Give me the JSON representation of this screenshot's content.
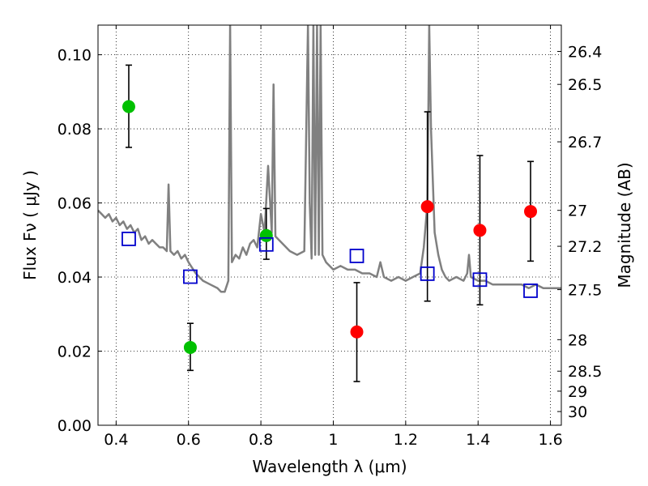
{
  "chart_data": {
    "type": "scatter",
    "xlabel": "Wavelength  λ (μm)",
    "ylabel": "Flux  Fν  ( μJy )",
    "y2label": "Magnitude (AB)",
    "xlim": [
      0.35,
      1.63
    ],
    "ylim": [
      0.0,
      0.108
    ],
    "grid": true,
    "x_ticks": [
      0.4,
      0.6,
      0.8,
      1.0,
      1.2,
      1.4,
      1.6
    ],
    "x_tick_labels": [
      "0.4",
      "0.6",
      "0.8",
      "1",
      "1.2",
      "1.4",
      "1.6"
    ],
    "y_ticks": [
      0.0,
      0.02,
      0.04,
      0.06,
      0.08,
      0.1
    ],
    "y_tick_labels": [
      "0.00",
      "0.02",
      "0.04",
      "0.06",
      "0.08",
      "0.10"
    ],
    "y2_ticks": [
      {
        "label": "26.4",
        "flux": 0.1009
      },
      {
        "label": "26.5",
        "flux": 0.092
      },
      {
        "label": "26.7",
        "flux": 0.0765
      },
      {
        "label": "27",
        "flux": 0.058
      },
      {
        "label": "27.2",
        "flux": 0.0483
      },
      {
        "label": "27.5",
        "flux": 0.0366
      },
      {
        "label": "28",
        "flux": 0.0231
      },
      {
        "label": "28.5",
        "flux": 0.0146
      },
      {
        "label": "29",
        "flux": 0.0092
      },
      {
        "label": "30",
        "flux": 0.0037
      }
    ],
    "series": [
      {
        "kind": "line",
        "color": "#808080",
        "x": [
          0.35,
          0.36,
          0.37,
          0.38,
          0.39,
          0.4,
          0.41,
          0.42,
          0.43,
          0.44,
          0.45,
          0.46,
          0.47,
          0.48,
          0.49,
          0.5,
          0.51,
          0.52,
          0.53,
          0.54,
          0.545,
          0.55,
          0.56,
          0.57,
          0.58,
          0.59,
          0.6,
          0.62,
          0.64,
          0.66,
          0.68,
          0.69,
          0.7,
          0.71,
          0.715,
          0.72,
          0.73,
          0.74,
          0.75,
          0.76,
          0.77,
          0.78,
          0.79,
          0.8,
          0.81,
          0.82,
          0.83,
          0.835,
          0.84,
          0.86,
          0.88,
          0.9,
          0.92,
          0.93,
          0.935,
          0.94,
          0.945,
          0.95,
          0.955,
          0.96,
          0.965,
          0.97,
          0.98,
          1.0,
          1.02,
          1.04,
          1.06,
          1.08,
          1.1,
          1.12,
          1.13,
          1.14,
          1.16,
          1.18,
          1.2,
          1.22,
          1.24,
          1.25,
          1.26,
          1.265,
          1.27,
          1.28,
          1.29,
          1.3,
          1.31,
          1.32,
          1.34,
          1.36,
          1.37,
          1.375,
          1.38,
          1.4,
          1.42,
          1.44,
          1.46,
          1.48,
          1.5,
          1.52,
          1.54,
          1.56,
          1.58,
          1.6,
          1.63
        ],
        "y": [
          0.058,
          0.057,
          0.056,
          0.057,
          0.055,
          0.056,
          0.054,
          0.055,
          0.053,
          0.054,
          0.052,
          0.053,
          0.05,
          0.051,
          0.049,
          0.05,
          0.049,
          0.048,
          0.048,
          0.047,
          0.065,
          0.047,
          0.046,
          0.047,
          0.045,
          0.046,
          0.044,
          0.041,
          0.039,
          0.038,
          0.037,
          0.036,
          0.036,
          0.039,
          0.108,
          0.044,
          0.046,
          0.045,
          0.048,
          0.046,
          0.049,
          0.05,
          0.048,
          0.057,
          0.052,
          0.07,
          0.052,
          0.092,
          0.051,
          0.049,
          0.047,
          0.046,
          0.047,
          0.108,
          0.06,
          0.045,
          0.108,
          0.046,
          0.108,
          0.046,
          0.108,
          0.046,
          0.044,
          0.042,
          0.043,
          0.042,
          0.042,
          0.041,
          0.041,
          0.04,
          0.044,
          0.04,
          0.039,
          0.04,
          0.039,
          0.04,
          0.041,
          0.048,
          0.06,
          0.108,
          0.08,
          0.052,
          0.046,
          0.042,
          0.04,
          0.039,
          0.04,
          0.039,
          0.041,
          0.046,
          0.04,
          0.039,
          0.039,
          0.038,
          0.038,
          0.038,
          0.038,
          0.038,
          0.037,
          0.038,
          0.037,
          0.037,
          0.037
        ]
      },
      {
        "kind": "points",
        "marker": "circle",
        "color": "#00c000",
        "x": [
          0.435,
          0.605,
          0.815
        ],
        "y": [
          0.086,
          0.021,
          0.0512
        ],
        "err_low": [
          0.075,
          0.0148,
          0.0448
        ],
        "err_high": [
          0.0972,
          0.0275,
          0.0585
        ]
      },
      {
        "kind": "points",
        "marker": "circle",
        "color": "#ff0000",
        "x": [
          1.065,
          1.26,
          1.405,
          1.545
        ],
        "y": [
          0.0252,
          0.059,
          0.0526,
          0.0577
        ],
        "err_low": [
          0.0118,
          0.0335,
          0.0325,
          0.0443
        ],
        "err_high": [
          0.0385,
          0.0846,
          0.0728,
          0.0712
        ]
      },
      {
        "kind": "points",
        "marker": "open-square",
        "color": "#0000cc",
        "x": [
          0.435,
          0.605,
          0.815,
          1.065,
          1.26,
          1.405,
          1.545
        ],
        "y": [
          0.0503,
          0.0401,
          0.0488,
          0.0457,
          0.0409,
          0.0393,
          0.0363
        ]
      }
    ]
  }
}
